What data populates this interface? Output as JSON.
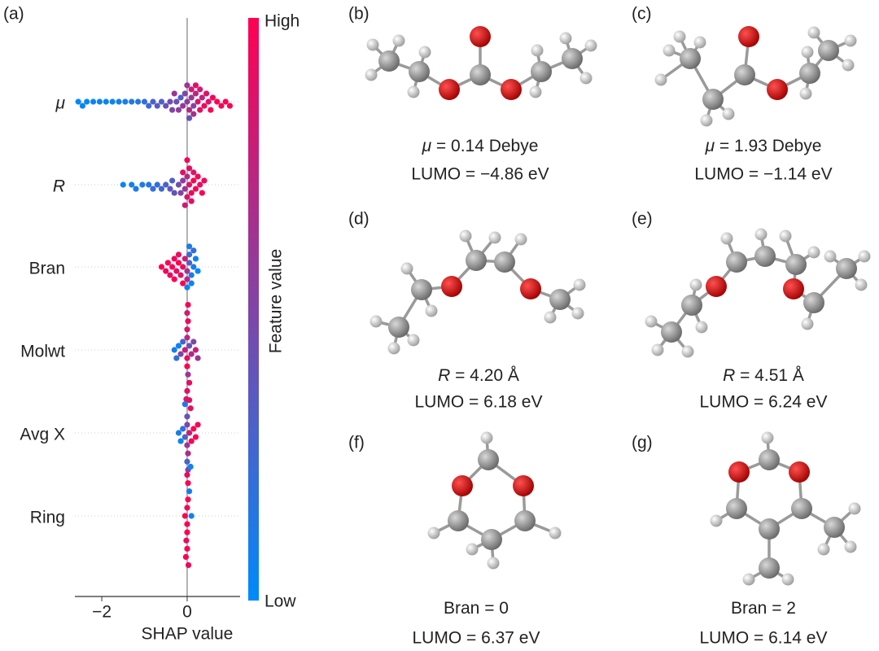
{
  "chart_data": {
    "type": "beeswarm",
    "panel_label": "(a)",
    "xlabel": "SHAP value",
    "xlim": [
      -2.63,
      1.24
    ],
    "xticks": [
      {
        "value": -2,
        "label": "−2"
      },
      0
    ],
    "colorbar": {
      "title": "Feature value",
      "high": "High",
      "low": "Low",
      "colors": [
        "#008afb",
        "#ff0052"
      ]
    },
    "series": [
      {
        "name": "μ",
        "points": [
          [
            -2.55,
            0.02
          ],
          [
            -2.45,
            0.03
          ],
          [
            -2.35,
            0.02
          ],
          [
            -2.2,
            0.05
          ],
          [
            -2.05,
            0.04
          ],
          [
            -1.9,
            0.06
          ],
          [
            -1.75,
            0.05
          ],
          [
            -1.6,
            0.08
          ],
          [
            -1.45,
            0.1
          ],
          [
            -1.3,
            0.12
          ],
          [
            -1.15,
            0.15
          ],
          [
            -1.0,
            0.2
          ],
          [
            -0.9,
            0.25
          ],
          [
            -0.8,
            0.3
          ],
          [
            -0.7,
            0.35
          ],
          [
            -0.6,
            0.3
          ],
          [
            -0.5,
            0.4
          ],
          [
            -0.4,
            0.45
          ],
          [
            -0.35,
            0.5
          ],
          [
            -0.25,
            0.4
          ],
          [
            -0.2,
            0.55
          ],
          [
            -0.15,
            0.3
          ],
          [
            -0.1,
            0.6
          ],
          [
            -0.05,
            0.5
          ],
          [
            0,
            0.55
          ],
          [
            0.05,
            0.7
          ],
          [
            0.1,
            0.6
          ],
          [
            0.1,
            0.8
          ],
          [
            0.15,
            0.5
          ],
          [
            0.2,
            0.75
          ],
          [
            0.25,
            0.85
          ],
          [
            0.3,
            0.9
          ],
          [
            0.35,
            0.7
          ],
          [
            0.4,
            0.95
          ],
          [
            0.45,
            0.9
          ],
          [
            0.5,
            0.85
          ],
          [
            0.55,
            1
          ],
          [
            0.6,
            0.95
          ],
          [
            0.7,
            1
          ],
          [
            0.8,
            0.95
          ],
          [
            0.9,
            1
          ],
          [
            1.0,
            1
          ],
          [
            0.05,
            0.4
          ],
          [
            0,
            0.6
          ],
          [
            0.15,
            0.65
          ],
          [
            0.2,
            0.9
          ],
          [
            -0.3,
            0.6
          ],
          [
            0.3,
            0.8
          ]
        ]
      },
      {
        "name": "R",
        "points": [
          [
            -1.5,
            0.05
          ],
          [
            -1.3,
            0.08
          ],
          [
            -1.2,
            0.1
          ],
          [
            -1.05,
            0.12
          ],
          [
            -0.9,
            0.15
          ],
          [
            -0.8,
            0.2
          ],
          [
            -0.7,
            0.2
          ],
          [
            -0.6,
            0.25
          ],
          [
            -0.5,
            0.3
          ],
          [
            -0.4,
            0.35
          ],
          [
            -0.35,
            0.3
          ],
          [
            -0.3,
            0.4
          ],
          [
            -0.2,
            0.45
          ],
          [
            -0.15,
            0.5
          ],
          [
            -0.1,
            0.55
          ],
          [
            -0.05,
            0.6
          ],
          [
            0,
            0.7
          ],
          [
            0,
            0.8
          ],
          [
            0.05,
            0.85
          ],
          [
            0.05,
            0.9
          ],
          [
            0.1,
            0.95
          ],
          [
            0.1,
            0.9
          ],
          [
            0.15,
            1
          ],
          [
            0.2,
            0.95
          ],
          [
            0.25,
            1
          ],
          [
            0.3,
            0.9
          ],
          [
            0.35,
            1
          ],
          [
            0.4,
            0.95
          ],
          [
            -0.05,
            0.8
          ],
          [
            0,
            0.95
          ],
          [
            0.15,
            0.85
          ],
          [
            -0.1,
            0.9
          ]
        ]
      },
      {
        "name": "Bran",
        "points": [
          [
            -0.6,
            1
          ],
          [
            -0.5,
            0.95
          ],
          [
            -0.45,
            1
          ],
          [
            -0.4,
            0.9
          ],
          [
            -0.35,
            1
          ],
          [
            -0.3,
            0.95
          ],
          [
            -0.25,
            0.9
          ],
          [
            -0.2,
            1
          ],
          [
            -0.15,
            0.85
          ],
          [
            -0.1,
            0.9
          ],
          [
            -0.05,
            0.8
          ],
          [
            0,
            0.6
          ],
          [
            0,
            0.7
          ],
          [
            0.05,
            0.3
          ],
          [
            0.05,
            0.2
          ],
          [
            0.1,
            0.1
          ],
          [
            0.1,
            0.05
          ],
          [
            0.15,
            0.1
          ],
          [
            0.2,
            0.05
          ],
          [
            0.25,
            0
          ],
          [
            -0.1,
            1
          ],
          [
            -0.2,
            0.9
          ],
          [
            0,
            0.05
          ],
          [
            0.05,
            0.1
          ],
          [
            -0.3,
            1
          ],
          [
            0.15,
            0.2
          ]
        ]
      },
      {
        "name": "Molwt",
        "points": [
          [
            -0.3,
            0.1
          ],
          [
            -0.25,
            0.2
          ],
          [
            -0.2,
            0.05
          ],
          [
            -0.15,
            0.5
          ],
          [
            -0.1,
            0.3
          ],
          [
            -0.05,
            0.8
          ],
          [
            0,
            0.9
          ],
          [
            0,
            0.7
          ],
          [
            0,
            1
          ],
          [
            0,
            0.85
          ],
          [
            0.02,
            0.6
          ],
          [
            0.02,
            0.95
          ],
          [
            0.05,
            0.4
          ],
          [
            0.05,
            0.9
          ],
          [
            0.1,
            0.7
          ],
          [
            0.15,
            0.5
          ],
          [
            0.2,
            0.8
          ],
          [
            0.25,
            0.6
          ],
          [
            0,
            0.8
          ],
          [
            0,
            0.9
          ],
          [
            0.02,
            1
          ],
          [
            -0.02,
            0.85
          ]
        ]
      },
      {
        "name": "Avg X",
        "points": [
          [
            -0.2,
            0.1
          ],
          [
            -0.15,
            0.05
          ],
          [
            -0.1,
            0.2
          ],
          [
            -0.05,
            0.3
          ],
          [
            0,
            0.5
          ],
          [
            0,
            0.6
          ],
          [
            0,
            0.4
          ],
          [
            0.02,
            0.7
          ],
          [
            0.05,
            0.8
          ],
          [
            0.08,
            0.9
          ],
          [
            0.1,
            0.95
          ],
          [
            0.15,
            1
          ],
          [
            0.2,
            1
          ],
          [
            0.25,
            0.95
          ],
          [
            0,
            0.3
          ],
          [
            -0.05,
            0.1
          ],
          [
            0.02,
            0.5
          ],
          [
            0.05,
            0.9
          ]
        ]
      },
      {
        "name": "Ring",
        "points": [
          [
            -0.05,
            1
          ],
          [
            0,
            1
          ],
          [
            0,
            0.95
          ],
          [
            0,
            1
          ],
          [
            0.02,
            1
          ],
          [
            -0.02,
            0.95
          ],
          [
            0.05,
            0.1
          ],
          [
            0.1,
            0.05
          ],
          [
            0,
            1
          ],
          [
            0.02,
            1
          ],
          [
            -0.03,
            1
          ],
          [
            0,
            0.9
          ],
          [
            0.03,
            0.95
          ],
          [
            0.08,
            0.05
          ]
        ]
      }
    ]
  },
  "panels": [
    {
      "label": "(b)",
      "symbol": "μ",
      "line1": " = 0.14 Debye",
      "line2": "LUMO = −4.86 eV"
    },
    {
      "label": "(c)",
      "symbol": "μ",
      "line1": " = 1.93 Debye",
      "line2": "LUMO = −1.14 eV"
    },
    {
      "label": "(d)",
      "symbol": "R",
      "line1": " = 4.20 Å",
      "line2": "LUMO = 6.18 eV"
    },
    {
      "label": "(e)",
      "symbol": "R",
      "line1": " = 4.51 Å",
      "line2": "LUMO = 6.24 eV"
    },
    {
      "label": "(f)",
      "line1": "Bran = 0",
      "line2": "LUMO = 6.37 eV"
    },
    {
      "label": "(g)",
      "line1": "Bran = 2",
      "line2": "LUMO = 6.14 eV"
    }
  ]
}
